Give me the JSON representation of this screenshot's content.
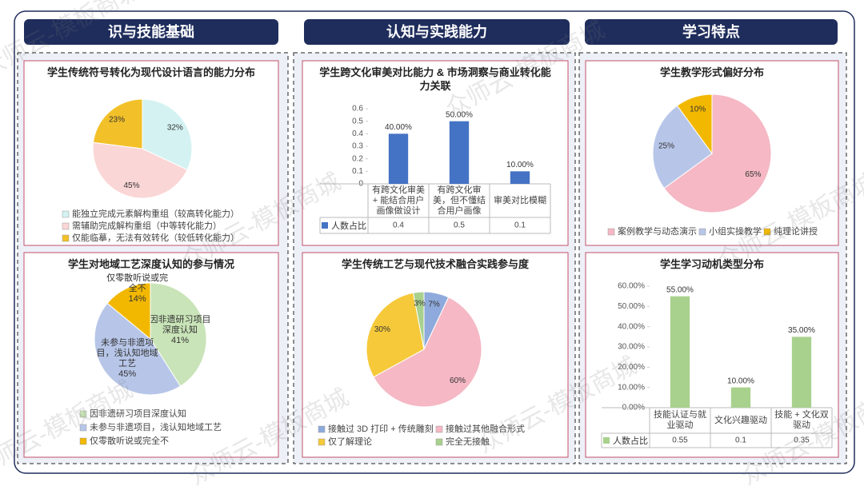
{
  "sections": [
    "识与技能基础",
    "认知与实践能力",
    "学习特点"
  ],
  "watermark": "众师云-模板商城",
  "chart_data": [
    {
      "type": "pie",
      "title": "学生传统符号转化为现代设计语言的能力分布",
      "categories": [
        "能独立完成元素解构重组（较高转化能力）",
        "需辅助完成解构重组（中等转化能力）",
        "仅能临摹，无法有效转化（较低转化能力）"
      ],
      "values": [
        32,
        45,
        23
      ],
      "value_labels": [
        "32%",
        "45%",
        "23%"
      ],
      "colors": [
        "#d4f2f2",
        "#fbd6d6",
        "#f2c029"
      ],
      "legend": "bottom"
    },
    {
      "type": "pie",
      "title": "学生对地域工艺深度认知的参与情况",
      "categories": [
        "因非遗研习项目深度认知",
        "未参与非遗项目，浅认知地域工艺",
        "仅零散听说或完全不"
      ],
      "values": [
        41,
        45,
        14
      ],
      "value_labels": [
        "41%",
        "45%",
        "14%"
      ],
      "colors": [
        "#c9e4b8",
        "#b7c6e8",
        "#f2b800"
      ],
      "legend": "bottom"
    },
    {
      "type": "bar",
      "title": "学生跨文化审美对比能力 & 市场洞察与商业转化能力关联",
      "categories": [
        "有跨文化审美 + 能结合用户画像做设计",
        "有跨文化审美，但不懂结合用户画像",
        "审美对比模糊"
      ],
      "series": [
        {
          "name": "人数占比",
          "color": "#4472c4",
          "values": [
            0.4,
            0.5,
            0.1
          ],
          "value_labels": [
            "40.00%",
            "50.00%",
            "10.00%"
          ]
        }
      ],
      "ylim": [
        0,
        0.6
      ],
      "yticks": [
        0,
        0.1,
        0.2,
        0.3,
        0.4,
        0.5,
        0.6
      ],
      "grid": false,
      "legend": "data-table"
    },
    {
      "type": "pie",
      "title": "学生传统工艺与现代技术融合实践参与度",
      "categories": [
        "接触过 3D 打印 + 传统雕刻",
        "接触过其他融合形式",
        "仅了解理论",
        "完全无接触"
      ],
      "values": [
        7,
        60,
        30,
        3
      ],
      "value_labels": [
        "7%",
        "60%",
        "30%",
        "3%"
      ],
      "colors": [
        "#8eaadc",
        "#f5b8c4",
        "#f5c93a",
        "#a9d18e"
      ],
      "legend": "bottom"
    },
    {
      "type": "pie",
      "title": "学生教学形式偏好分布",
      "categories": [
        "案例教学与动态演示",
        "小组实操教学",
        "纯理论讲授"
      ],
      "values": [
        65,
        25,
        10
      ],
      "value_labels": [
        "65%",
        "25%",
        "10%"
      ],
      "colors": [
        "#f5b8c4",
        "#b7c6e8",
        "#f2b800"
      ],
      "legend": "bottom"
    },
    {
      "type": "bar",
      "title": "学生学习动机类型分布",
      "categories": [
        "技能认证与就业驱动",
        "文化兴趣驱动",
        "技能 + 文化双驱动"
      ],
      "series": [
        {
          "name": "人数占比",
          "color": "#a9d18e",
          "values": [
            0.55,
            0.1,
            0.35
          ],
          "value_labels": [
            "55.00%",
            "10.00%",
            "35.00%"
          ]
        }
      ],
      "ylim": [
        0,
        0.6
      ],
      "yticks": [
        {
          "value": 0,
          "label": "0.00%"
        },
        {
          "value": 0.1,
          "label": "10.00%"
        },
        {
          "value": 0.2,
          "label": "20.00%"
        },
        {
          "value": 0.3,
          "label": "30.00%"
        },
        {
          "value": 0.4,
          "label": "40.00%"
        },
        {
          "value": 0.5,
          "label": "50.00%"
        },
        {
          "value": 0.6,
          "label": "60.00%"
        }
      ],
      "grid": false,
      "legend": "data-table"
    }
  ]
}
